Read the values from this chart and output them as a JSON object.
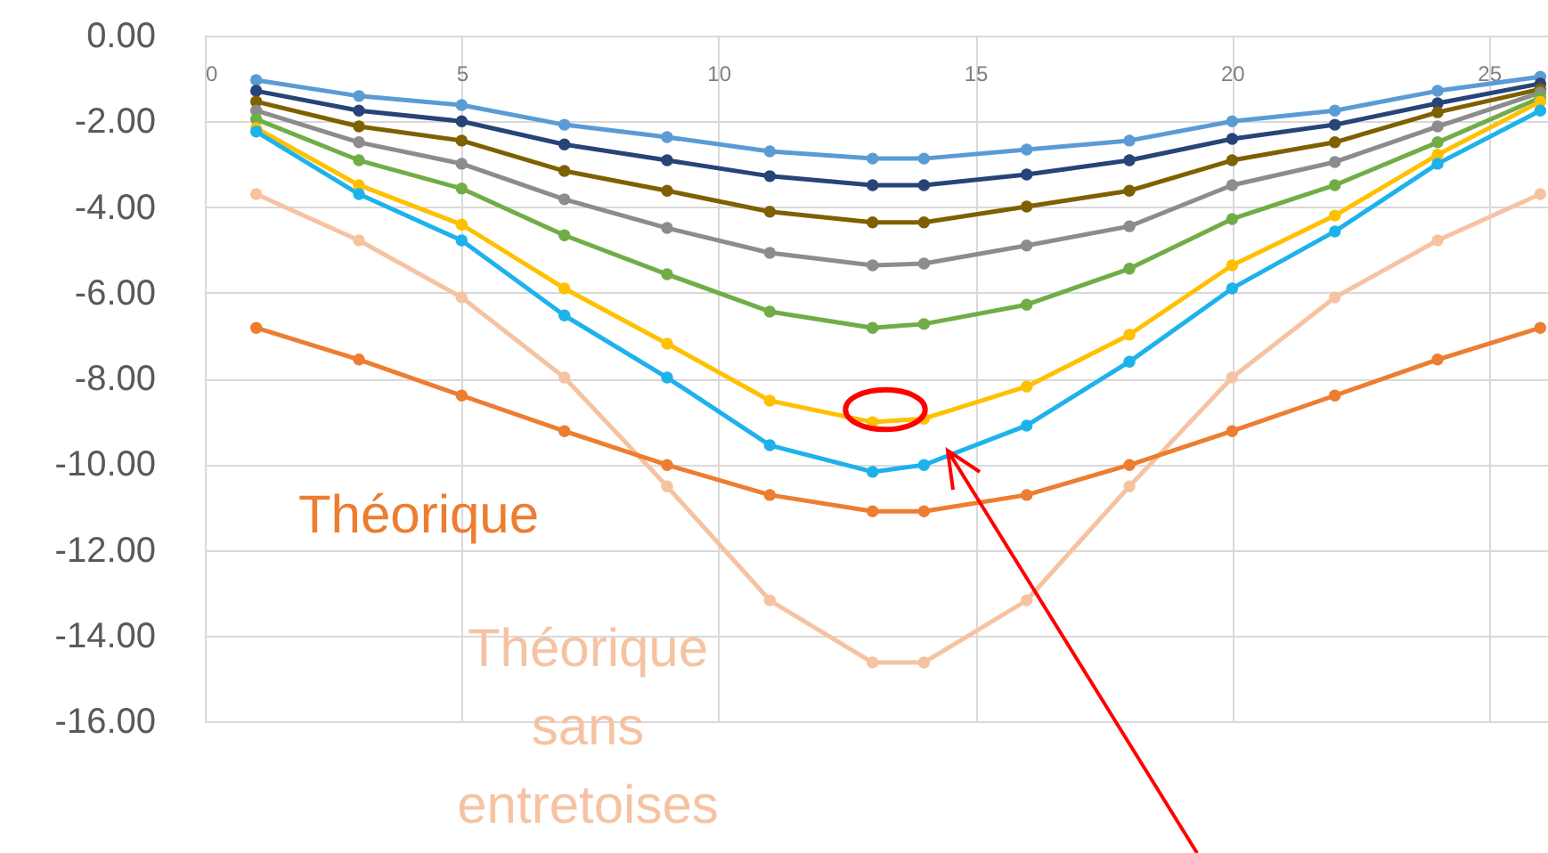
{
  "chart_data": {
    "type": "line",
    "x": [
      1,
      3,
      5,
      7,
      9,
      11,
      13,
      14,
      16,
      18,
      20,
      22,
      24,
      26
    ],
    "series": [
      {
        "color": "#f6c3a2",
        "values": [
          -3.7,
          -4.78,
          -6.11,
          -7.98,
          -10.52,
          -13.18,
          -14.63,
          -14.63,
          -13.18,
          -10.52,
          -7.98,
          -6.11,
          -4.78,
          -3.7
        ],
        "name": "Théorique sans entretoises"
      },
      {
        "color": "#ed7d31",
        "values": [
          -6.82,
          -7.56,
          -8.4,
          -9.23,
          -10.02,
          -10.72,
          -11.1,
          -11.1,
          -10.72,
          -10.02,
          -9.23,
          -8.4,
          -7.56,
          -6.82
        ],
        "name": "Théorique"
      },
      {
        "color": "#5b9bd5",
        "values": [
          -1.04,
          -1.41,
          -1.62,
          -2.08,
          -2.37,
          -2.7,
          -2.87,
          -2.87,
          -2.66,
          -2.45,
          -2.0,
          -1.75,
          -1.29,
          -0.96
        ]
      },
      {
        "color": "#264478",
        "values": [
          -1.29,
          -1.75,
          -2.0,
          -2.54,
          -2.91,
          -3.28,
          -3.49,
          -3.49,
          -3.24,
          -2.91,
          -2.41,
          -2.08,
          -1.58,
          -1.12
        ]
      },
      {
        "color": "#7f6000",
        "values": [
          -1.54,
          -2.12,
          -2.45,
          -3.16,
          -3.62,
          -4.11,
          -4.36,
          -4.36,
          -3.99,
          -3.62,
          -2.91,
          -2.49,
          -1.79,
          -1.25
        ]
      },
      {
        "color": "#8c8c8c",
        "values": [
          -1.75,
          -2.49,
          -2.99,
          -3.82,
          -4.49,
          -5.07,
          -5.36,
          -5.32,
          -4.9,
          -4.45,
          -3.49,
          -2.95,
          -2.12,
          -1.33
        ]
      },
      {
        "color": "#70ad47",
        "values": [
          -1.95,
          -2.91,
          -3.57,
          -4.66,
          -5.57,
          -6.44,
          -6.82,
          -6.73,
          -6.28,
          -5.44,
          -4.28,
          -3.49,
          -2.49,
          -1.45
        ]
      },
      {
        "color": "#ffc000",
        "values": [
          -2.16,
          -3.49,
          -4.41,
          -5.9,
          -7.19,
          -8.52,
          -9.02,
          -8.94,
          -8.19,
          -6.98,
          -5.36,
          -4.2,
          -2.78,
          -1.54
        ]
      },
      {
        "color": "#1eb2ec",
        "values": [
          -2.24,
          -3.7,
          -4.78,
          -6.53,
          -7.98,
          -9.56,
          -10.18,
          -10.02,
          -9.1,
          -7.61,
          -5.9,
          -4.57,
          -2.99,
          -1.75
        ]
      }
    ],
    "xlim": [
      0,
      26.15
    ],
    "xticks": [
      0,
      5,
      10,
      15,
      20,
      25
    ],
    "ylim": [
      -16,
      0
    ],
    "yticks": [
      {
        "value": 0,
        "label": "0.00"
      },
      {
        "value": -2,
        "label": "-2.00"
      },
      {
        "value": -4,
        "label": "-4.00"
      },
      {
        "value": -6,
        "label": "-6.00"
      },
      {
        "value": -8,
        "label": "-8.00"
      },
      {
        "value": -10,
        "label": "-10.00"
      },
      {
        "value": -12,
        "label": "-12.00"
      },
      {
        "value": -14,
        "label": "-14.00"
      },
      {
        "value": -16,
        "label": "-16.00"
      }
    ],
    "grid": true,
    "marker": "circle",
    "line_style": "solid"
  }
}
